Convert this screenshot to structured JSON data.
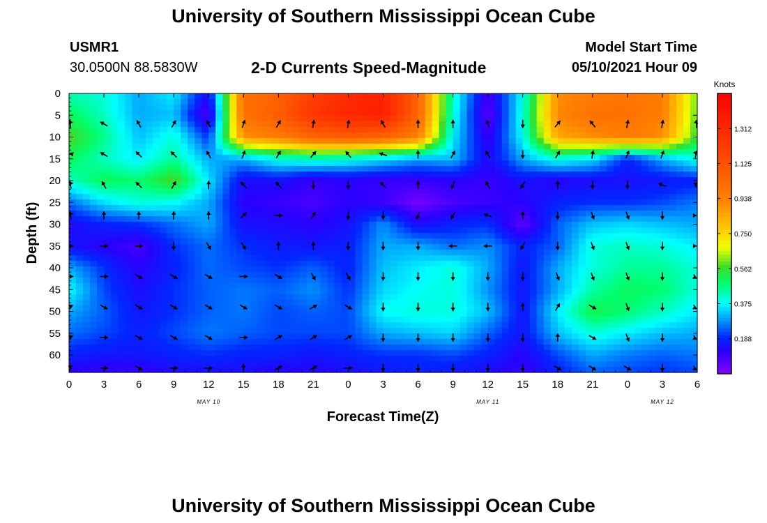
{
  "header": {
    "title_top": "University of Southern Mississippi Ocean Cube",
    "title_bottom": "University of Southern Mississippi Ocean Cube",
    "station_id": "USMR1",
    "station_coords": "30.0500N  88.5830W",
    "plot_title": "2-D Currents Speed-Magnitude",
    "model_label": "Model Start Time",
    "model_time": "05/10/2021 Hour 09"
  },
  "chart_data": {
    "type": "heatmap",
    "xlabel": "Forecast Time(Z)",
    "ylabel": "Depth (ft)",
    "x_tick_labels": [
      "0",
      "3",
      "6",
      "9",
      "12",
      "15",
      "18",
      "21",
      "0",
      "3",
      "6",
      "9",
      "12",
      "15",
      "18",
      "21",
      "0",
      "3",
      "6"
    ],
    "x_range_hours": [
      0,
      54
    ],
    "date_labels": [
      {
        "text": "MAY 10",
        "hour": 12
      },
      {
        "text": "MAY 11",
        "hour": 36
      },
      {
        "text": "MAY 12",
        "hour": 51
      }
    ],
    "y_ticks": [
      0,
      5,
      10,
      15,
      20,
      25,
      30,
      35,
      40,
      45,
      50,
      55,
      60
    ],
    "y_range": [
      0,
      64
    ],
    "y_inverted": true,
    "colorbar": {
      "title": "Knots",
      "range": [
        0,
        1.5
      ],
      "tick_labels": [
        "0.188",
        "0.375",
        "0.562",
        "0.750",
        "0.938",
        "1.125",
        "1.312"
      ],
      "tick_values": [
        0.188,
        0.375,
        0.562,
        0.75,
        0.938,
        1.125,
        1.312
      ]
    },
    "speed_field_knots": {
      "x_hours": [
        0,
        3,
        6,
        9,
        12,
        15,
        18,
        21,
        24,
        27,
        30,
        33,
        36,
        39,
        42,
        45,
        48,
        51,
        54
      ],
      "depths_ft": [
        0,
        5,
        10,
        15,
        20,
        25,
        30,
        35,
        40,
        45,
        50,
        55,
        60,
        64
      ],
      "values": [
        [
          0.43,
          0.4,
          0.3,
          0.36,
          0.14,
          1.0,
          1.05,
          1.2,
          1.3,
          1.35,
          1.05,
          0.42,
          0.08,
          0.38,
          0.9,
          0.95,
          0.98,
          0.95,
          0.6
        ],
        [
          0.5,
          0.42,
          0.3,
          0.32,
          0.06,
          1.0,
          1.08,
          1.25,
          1.32,
          1.35,
          1.05,
          0.4,
          0.05,
          0.4,
          0.92,
          1.0,
          1.0,
          0.95,
          0.58
        ],
        [
          0.58,
          0.46,
          0.32,
          0.4,
          0.2,
          0.9,
          0.95,
          1.05,
          1.08,
          1.05,
          0.95,
          0.36,
          0.1,
          0.38,
          0.85,
          0.9,
          0.95,
          0.9,
          0.55
        ],
        [
          0.5,
          0.42,
          0.36,
          0.45,
          0.3,
          0.3,
          0.4,
          0.42,
          0.4,
          0.35,
          0.3,
          0.32,
          0.13,
          0.3,
          0.4,
          0.35,
          0.18,
          0.3,
          0.4
        ],
        [
          0.42,
          0.5,
          0.48,
          0.58,
          0.35,
          0.14,
          0.15,
          0.1,
          0.12,
          0.1,
          0.1,
          0.12,
          0.1,
          0.15,
          0.12,
          0.14,
          0.15,
          0.16,
          0.18
        ],
        [
          0.25,
          0.35,
          0.4,
          0.38,
          0.3,
          0.12,
          0.1,
          0.08,
          0.12,
          0.1,
          0.02,
          0.08,
          0.1,
          0.12,
          0.18,
          0.2,
          0.2,
          0.22,
          0.26
        ],
        [
          0.14,
          0.18,
          0.2,
          0.25,
          0.3,
          0.15,
          0.14,
          0.12,
          0.15,
          0.28,
          0.14,
          0.18,
          0.2,
          0.05,
          0.24,
          0.32,
          0.34,
          0.32,
          0.3
        ],
        [
          0.15,
          0.12,
          0.08,
          0.2,
          0.25,
          0.2,
          0.17,
          0.16,
          0.18,
          0.3,
          0.3,
          0.25,
          0.28,
          0.18,
          0.24,
          0.4,
          0.42,
          0.4,
          0.36
        ],
        [
          0.3,
          0.2,
          0.12,
          0.18,
          0.25,
          0.22,
          0.2,
          0.24,
          0.18,
          0.32,
          0.36,
          0.4,
          0.3,
          0.16,
          0.3,
          0.4,
          0.45,
          0.45,
          0.4
        ],
        [
          0.38,
          0.22,
          0.14,
          0.2,
          0.24,
          0.26,
          0.24,
          0.28,
          0.2,
          0.34,
          0.38,
          0.4,
          0.28,
          0.16,
          0.3,
          0.44,
          0.5,
          0.48,
          0.4
        ],
        [
          0.3,
          0.24,
          0.16,
          0.2,
          0.24,
          0.26,
          0.22,
          0.24,
          0.22,
          0.38,
          0.4,
          0.4,
          0.32,
          0.16,
          0.36,
          0.52,
          0.48,
          0.42,
          0.36
        ],
        [
          0.25,
          0.22,
          0.18,
          0.22,
          0.26,
          0.24,
          0.22,
          0.22,
          0.22,
          0.3,
          0.32,
          0.34,
          0.24,
          0.16,
          0.32,
          0.4,
          0.36,
          0.32,
          0.3
        ],
        [
          0.18,
          0.16,
          0.16,
          0.18,
          0.2,
          0.18,
          0.18,
          0.16,
          0.18,
          0.2,
          0.2,
          0.22,
          0.18,
          0.12,
          0.22,
          0.3,
          0.26,
          0.24,
          0.26
        ],
        [
          0.12,
          0.1,
          0.1,
          0.14,
          0.14,
          0.14,
          0.12,
          0.12,
          0.14,
          0.16,
          0.18,
          0.16,
          0.14,
          0.1,
          0.18,
          0.24,
          0.22,
          0.2,
          0.22
        ]
      ]
    },
    "direction_field_deg": {
      "x_hours": [
        0,
        3,
        6,
        9,
        12,
        15,
        18,
        21,
        24,
        27,
        30,
        33,
        36,
        39,
        42,
        45,
        48,
        51,
        54
      ],
      "depths_ft": [
        7,
        14,
        21,
        28,
        35,
        42,
        49,
        56,
        63
      ],
      "angles": [
        [
          340,
          300,
          330,
          30,
          330,
          20,
          30,
          10,
          10,
          330,
          0,
          0,
          340,
          180,
          40,
          320,
          10,
          10,
          10
        ],
        [
          290,
          300,
          315,
          315,
          330,
          20,
          30,
          40,
          320,
          290,
          0,
          30,
          330,
          180,
          30,
          10,
          20,
          20,
          30
        ],
        [
          330,
          330,
          315,
          30,
          0,
          315,
          315,
          180,
          180,
          315,
          0,
          200,
          330,
          210,
          0,
          180,
          180,
          290,
          300
        ],
        [
          330,
          0,
          0,
          0,
          0,
          45,
          90,
          30,
          180,
          180,
          200,
          210,
          290,
          0,
          180,
          160,
          160,
          180,
          90
        ],
        [
          90,
          90,
          90,
          180,
          150,
          150,
          0,
          0,
          180,
          180,
          180,
          270,
          270,
          210,
          180,
          160,
          160,
          180,
          90
        ],
        [
          90,
          90,
          120,
          120,
          120,
          90,
          120,
          150,
          150,
          180,
          180,
          180,
          180,
          180,
          160,
          160,
          160,
          180,
          120
        ],
        [
          60,
          120,
          120,
          120,
          120,
          120,
          120,
          60,
          120,
          180,
          180,
          180,
          180,
          0,
          30,
          120,
          160,
          180,
          120
        ],
        [
          60,
          90,
          120,
          120,
          120,
          90,
          60,
          60,
          60,
          180,
          180,
          180,
          180,
          180,
          0,
          120,
          160,
          180,
          120
        ],
        [
          45,
          90,
          120,
          90,
          90,
          0,
          60,
          60,
          90,
          180,
          180,
          180,
          180,
          180,
          120,
          120,
          120,
          180,
          120
        ]
      ]
    }
  }
}
